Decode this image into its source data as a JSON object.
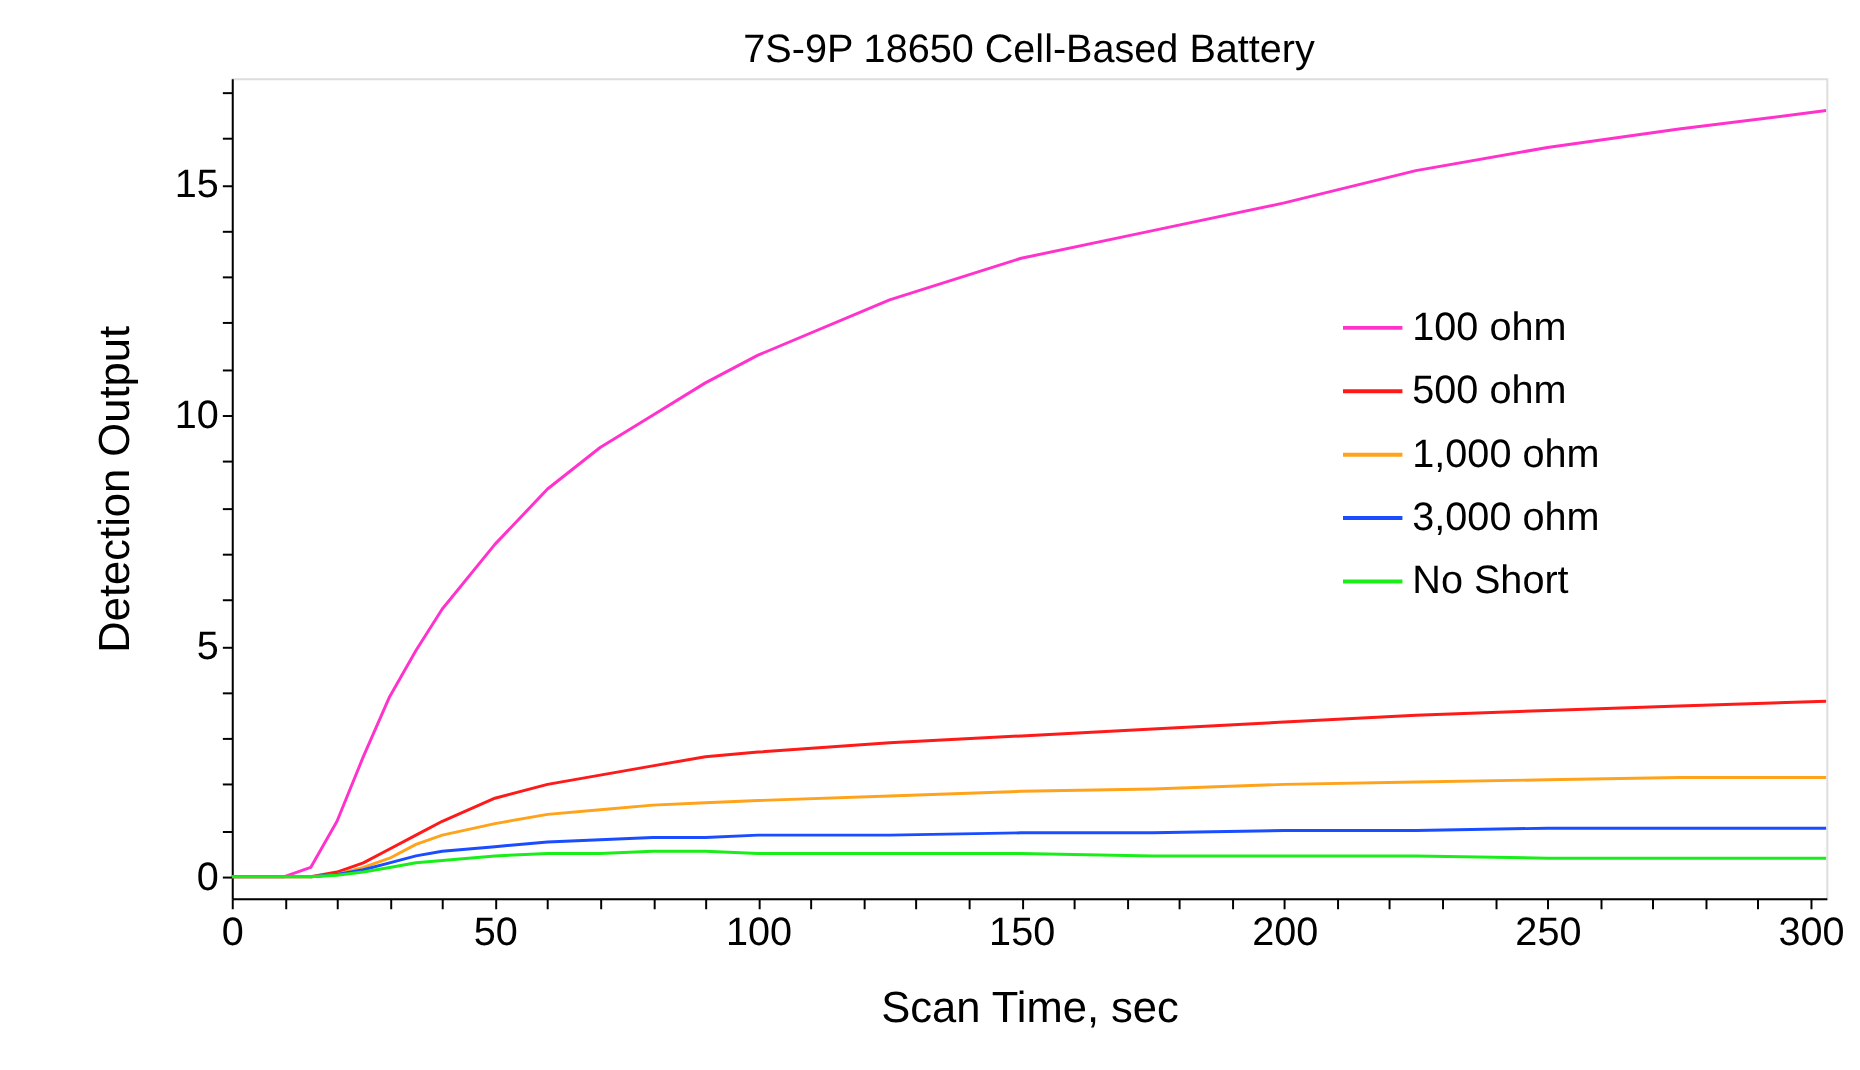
{
  "chart_data": {
    "type": "line",
    "title": "7S-9P 18650 Cell-Based Battery",
    "xlabel": "Scan Time, sec",
    "ylabel": "Detection Output",
    "x": [
      0,
      10,
      15,
      20,
      25,
      30,
      35,
      40,
      50,
      60,
      70,
      80,
      90,
      100,
      125,
      150,
      175,
      200,
      225,
      250,
      275,
      303
    ],
    "series": [
      {
        "name": "100 ohm",
        "color": "#ff33cc",
        "values": [
          0,
          0,
          0.2,
          1.2,
          2.6,
          3.9,
          4.9,
          5.8,
          7.2,
          8.4,
          9.3,
          10.0,
          10.7,
          11.3,
          12.5,
          13.4,
          14.0,
          14.6,
          15.3,
          15.8,
          16.2,
          16.6
        ]
      },
      {
        "name": "500 ohm",
        "color": "#ff1a1a",
        "values": [
          0,
          0,
          0,
          0.1,
          0.3,
          0.6,
          0.9,
          1.2,
          1.7,
          2.0,
          2.2,
          2.4,
          2.6,
          2.7,
          2.9,
          3.05,
          3.2,
          3.35,
          3.5,
          3.6,
          3.7,
          3.8
        ]
      },
      {
        "name": "1,000 ohm",
        "color": "#ffa31a",
        "values": [
          null,
          null,
          0,
          0.05,
          0.2,
          0.4,
          0.7,
          0.9,
          1.15,
          1.35,
          1.45,
          1.55,
          1.6,
          1.65,
          1.75,
          1.85,
          1.9,
          2.0,
          2.05,
          2.1,
          2.15,
          2.15
        ]
      },
      {
        "name": "3,000 ohm",
        "color": "#1a4dff",
        "values": [
          null,
          null,
          0,
          0.05,
          0.15,
          0.3,
          0.45,
          0.55,
          0.65,
          0.75,
          0.8,
          0.85,
          0.85,
          0.9,
          0.9,
          0.95,
          0.95,
          1.0,
          1.0,
          1.05,
          1.05,
          1.05
        ]
      },
      {
        "name": "No Short",
        "color": "#1aee1a",
        "values": [
          0,
          0,
          0,
          0.03,
          0.1,
          0.2,
          0.3,
          0.35,
          0.45,
          0.5,
          0.5,
          0.55,
          0.55,
          0.5,
          0.5,
          0.5,
          0.45,
          0.45,
          0.45,
          0.4,
          0.4,
          0.4
        ]
      }
    ],
    "xlim": [
      0,
      303
    ],
    "ylim": [
      -0.47,
      17.3
    ],
    "xticks": [
      0,
      {
        "value": 10,
        "label": null
      },
      {
        "value": 20,
        "label": null
      },
      {
        "value": 30,
        "label": null
      },
      {
        "value": 40,
        "label": null
      },
      50,
      {
        "value": 60,
        "label": null
      },
      {
        "value": 70,
        "label": null
      },
      {
        "value": 80,
        "label": null
      },
      {
        "value": 90,
        "label": null
      },
      100,
      {
        "value": 110,
        "label": null
      },
      {
        "value": 120,
        "label": null
      },
      {
        "value": 130,
        "label": null
      },
      {
        "value": 140,
        "label": null
      },
      150,
      {
        "value": 160,
        "label": null
      },
      {
        "value": 170,
        "label": null
      },
      {
        "value": 180,
        "label": null
      },
      {
        "value": 190,
        "label": null
      },
      200,
      {
        "value": 210,
        "label": null
      },
      {
        "value": 220,
        "label": null
      },
      {
        "value": 230,
        "label": null
      },
      {
        "value": 240,
        "label": null
      },
      250,
      {
        "value": 260,
        "label": null
      },
      {
        "value": 270,
        "label": null
      },
      {
        "value": 280,
        "label": null
      },
      {
        "value": 290,
        "label": null
      },
      300
    ],
    "yticks": [
      0,
      {
        "value": 1,
        "label": null
      },
      {
        "value": 2,
        "label": null
      },
      {
        "value": 3,
        "label": null
      },
      {
        "value": 4,
        "label": null
      },
      5,
      {
        "value": 6,
        "label": null
      },
      {
        "value": 7,
        "label": null
      },
      {
        "value": 8,
        "label": null
      },
      {
        "value": 9,
        "label": null
      },
      10,
      {
        "value": 11,
        "label": null
      },
      {
        "value": 12,
        "label": null
      },
      {
        "value": 13,
        "label": null
      },
      {
        "value": 14,
        "label": null
      },
      15,
      {
        "value": 16,
        "label": null
      },
      {
        "value": 17,
        "label": null
      }
    ],
    "grid": false,
    "legend": "right",
    "marker": "none",
    "line_style": "solid"
  }
}
